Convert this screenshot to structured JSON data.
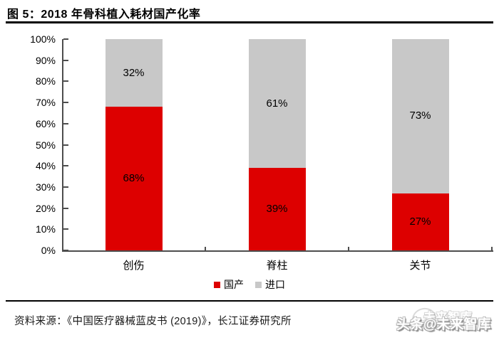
{
  "header": {
    "title": "图 5：2018 年骨科植入耗材国产化率"
  },
  "chart_data": {
    "type": "bar",
    "stacked": true,
    "title": "2018 年骨科植入耗材国产化率",
    "categories": [
      "创伤",
      "脊柱",
      "关节"
    ],
    "series": [
      {
        "name": "国产",
        "color": "#dd0000",
        "values": [
          68,
          39,
          27
        ]
      },
      {
        "name": "进口",
        "color": "#c8c8c8",
        "values": [
          32,
          61,
          73
        ]
      }
    ],
    "value_label_suffix": "%",
    "xlabel": "",
    "ylabel": "",
    "ylim": [
      0,
      100
    ],
    "y_tick_labels": [
      "0%",
      "10%",
      "20%",
      "30%",
      "40%",
      "50%",
      "60%",
      "70%",
      "80%",
      "90%",
      "100%"
    ],
    "grid": false,
    "legend_position": "bottom-center"
  },
  "footer": {
    "source": "资料来源：《中国医疗器械蓝皮书 (2019)》，长江证券研究所",
    "watermark": "头条@未来智库",
    "watermark_ghost": "未来智库"
  },
  "colors": {
    "domestic_red": "#dd0000",
    "import_gray": "#c8c8c8",
    "axis": "#4d4d4d",
    "rule": "#000000"
  }
}
